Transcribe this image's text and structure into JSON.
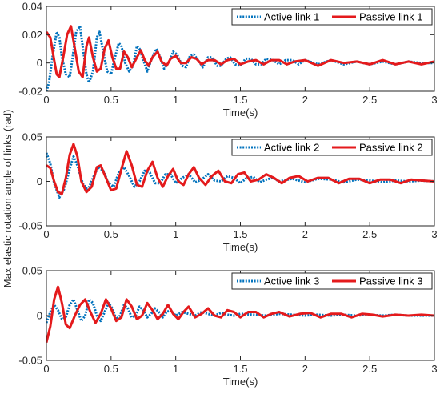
{
  "figure": {
    "ylabel": "Max elastic rotation angle of links (rad)",
    "colors": {
      "active": "#0072BD",
      "passive": "#E41A1C"
    }
  },
  "chart_data": [
    {
      "type": "line",
      "xlabel": "Time(s)",
      "xlim": [
        0,
        3
      ],
      "ylim": [
        -0.02,
        0.04
      ],
      "x_ticks": [
        0,
        0.5,
        1,
        1.5,
        2,
        2.5,
        3
      ],
      "x_tick_labels": [
        "0",
        "0.5",
        "1",
        "1.5",
        "2",
        "2.5",
        "3"
      ],
      "y_ticks": [
        -0.02,
        0,
        0.02,
        0.04
      ],
      "y_tick_labels": [
        "-0.02",
        "0",
        "0.02",
        "0.04"
      ],
      "legend": "top-right",
      "grid": false,
      "series": [
        {
          "name": "Active link 1",
          "style": "dotted",
          "color": "#0072BD",
          "x": [
            0,
            0.02,
            0.05,
            0.08,
            0.1,
            0.12,
            0.15,
            0.18,
            0.2,
            0.23,
            0.26,
            0.28,
            0.31,
            0.33,
            0.36,
            0.39,
            0.41,
            0.44,
            0.47,
            0.5,
            0.53,
            0.56,
            0.58,
            0.61,
            0.64,
            0.67,
            0.7,
            0.72,
            0.75,
            0.78,
            0.81,
            0.85,
            0.88,
            0.91,
            0.95,
            0.98,
            1.01,
            1.05,
            1.08,
            1.11,
            1.14,
            1.18,
            1.21,
            1.25,
            1.28,
            1.32,
            1.35,
            1.39,
            1.42,
            1.46,
            1.5,
            1.54,
            1.58,
            1.62,
            1.66,
            1.7,
            1.75,
            1.8,
            1.85,
            1.9,
            1.95,
            2.0,
            2.1,
            2.2,
            2.3,
            2.4,
            2.5,
            2.6,
            2.7,
            2.8,
            2.9,
            3.0
          ],
          "y": [
            -0.02,
            -0.014,
            0.006,
            0.022,
            0.018,
            0.004,
            -0.008,
            -0.01,
            0.002,
            0.022,
            0.026,
            0.012,
            -0.008,
            -0.014,
            -0.006,
            0.018,
            0.022,
            0.008,
            -0.006,
            -0.008,
            0.004,
            0.014,
            0.012,
            0,
            -0.006,
            -0.002,
            0.012,
            0.01,
            0.002,
            -0.006,
            0.002,
            0.01,
            0.004,
            -0.004,
            0.001,
            0.008,
            0.006,
            -0.002,
            -0.003,
            0.005,
            0.006,
            0.001,
            -0.003,
            0.004,
            0.004,
            -0.002,
            -0.002,
            0.003,
            0.004,
            -0.001,
            -0.002,
            0.003,
            0.003,
            -0.001,
            -0.001,
            0.003,
            0.002,
            -0.001,
            0.002,
            0.002,
            -0.001,
            0.002,
            -0.001,
            0.002,
            -0.001,
            0.001,
            -0.001,
            0.001,
            -0.001,
            0.001,
            0,
            0
          ]
        },
        {
          "name": "Passive link 1",
          "style": "solid",
          "color": "#E41A1C",
          "x": [
            0,
            0.03,
            0.06,
            0.08,
            0.1,
            0.13,
            0.16,
            0.19,
            0.22,
            0.25,
            0.28,
            0.31,
            0.33,
            0.36,
            0.39,
            0.42,
            0.45,
            0.48,
            0.51,
            0.54,
            0.57,
            0.6,
            0.63,
            0.66,
            0.7,
            0.73,
            0.76,
            0.79,
            0.82,
            0.86,
            0.89,
            0.93,
            0.96,
            1.0,
            1.04,
            1.08,
            1.12,
            1.16,
            1.2,
            1.25,
            1.3,
            1.35,
            1.4,
            1.45,
            1.5,
            1.56,
            1.62,
            1.68,
            1.74,
            1.8,
            1.86,
            1.92,
            2.0,
            2.1,
            2.2,
            2.3,
            2.4,
            2.5,
            2.6,
            2.7,
            2.8,
            2.9,
            3.0
          ],
          "y": [
            0.022,
            0.018,
            0.002,
            -0.008,
            -0.01,
            0.004,
            0.02,
            0.026,
            0.01,
            -0.006,
            -0.01,
            0.012,
            0.018,
            0.004,
            -0.006,
            -0.004,
            0.01,
            0.016,
            0.004,
            -0.004,
            -0.004,
            0.008,
            0.004,
            -0.003,
            0.004,
            0.009,
            0.002,
            -0.002,
            0.004,
            0.008,
            0.001,
            -0.002,
            0.003,
            0.005,
            0,
            0,
            0.004,
            0.003,
            -0.001,
            0.002,
            0.002,
            -0.001,
            0.002,
            0.003,
            -0.001,
            0.001,
            0.002,
            -0.001,
            0.002,
            0.002,
            -0.001,
            0.001,
            0.002,
            -0.002,
            0.002,
            0,
            0.001,
            -0.001,
            0.002,
            -0.001,
            0.001,
            -0.001,
            0.001
          ]
        }
      ]
    },
    {
      "type": "line",
      "xlabel": "Time(s)",
      "xlim": [
        0,
        3
      ],
      "ylim": [
        -0.05,
        0.05
      ],
      "x_ticks": [
        0,
        0.5,
        1,
        1.5,
        2,
        2.5,
        3
      ],
      "x_tick_labels": [
        "0",
        "0.5",
        "1",
        "1.5",
        "2",
        "2.5",
        "3"
      ],
      "y_ticks": [
        -0.05,
        0,
        0.05
      ],
      "y_tick_labels": [
        "-0.05",
        "0",
        "0.05"
      ],
      "legend": "top-right",
      "grid": false,
      "series": [
        {
          "name": "Active link 2",
          "style": "dotted",
          "color": "#0072BD",
          "x": [
            0,
            0.03,
            0.06,
            0.1,
            0.14,
            0.18,
            0.21,
            0.24,
            0.28,
            0.32,
            0.36,
            0.4,
            0.44,
            0.48,
            0.52,
            0.56,
            0.6,
            0.64,
            0.68,
            0.72,
            0.76,
            0.8,
            0.84,
            0.88,
            0.92,
            0.96,
            1.0,
            1.05,
            1.1,
            1.15,
            1.2,
            1.25,
            1.3,
            1.35,
            1.4,
            1.45,
            1.5,
            1.55,
            1.6,
            1.65,
            1.7,
            1.75,
            1.8,
            1.9,
            2.0,
            2.1,
            2.2,
            2.3,
            2.4,
            2.5,
            2.6,
            2.7,
            2.8,
            2.9,
            3.0
          ],
          "y": [
            0.032,
            0.02,
            -0.002,
            -0.018,
            -0.008,
            0.014,
            0.028,
            0.018,
            -0.002,
            -0.01,
            0.004,
            0.016,
            0.012,
            -0.002,
            -0.006,
            0.01,
            0.016,
            0.006,
            -0.006,
            0,
            0.012,
            0.01,
            -0.002,
            -0.002,
            0.008,
            0.008,
            -0.002,
            0.004,
            0.008,
            -0.001,
            0.002,
            0.008,
            0.001,
            0,
            0.006,
            0.004,
            -0.002,
            0.004,
            0.005,
            -0.001,
            0.002,
            0.004,
            0,
            0.003,
            -0.001,
            0.003,
            0.002,
            -0.001,
            0.002,
            0.001,
            -0.001,
            0.001,
            0,
            0.001,
            0
          ]
        },
        {
          "name": "Passive link 2",
          "style": "solid",
          "color": "#E41A1C",
          "x": [
            0,
            0.03,
            0.06,
            0.09,
            0.12,
            0.15,
            0.18,
            0.21,
            0.24,
            0.27,
            0.31,
            0.35,
            0.39,
            0.42,
            0.46,
            0.5,
            0.54,
            0.58,
            0.62,
            0.66,
            0.7,
            0.74,
            0.78,
            0.82,
            0.86,
            0.9,
            0.94,
            0.98,
            1.02,
            1.06,
            1.1,
            1.14,
            1.18,
            1.23,
            1.28,
            1.33,
            1.38,
            1.43,
            1.48,
            1.53,
            1.58,
            1.64,
            1.7,
            1.76,
            1.82,
            1.88,
            1.95,
            2.02,
            2.1,
            2.18,
            2.26,
            2.34,
            2.42,
            2.5,
            2.58,
            2.66,
            2.74,
            2.82,
            2.9,
            3.0
          ],
          "y": [
            0.018,
            0.015,
            0,
            -0.012,
            -0.014,
            0.004,
            0.03,
            0.042,
            0.028,
            0,
            -0.012,
            -0.006,
            0.016,
            0.018,
            0.004,
            -0.01,
            -0.008,
            0.014,
            0.034,
            0.018,
            -0.004,
            -0.006,
            0.012,
            0.022,
            0.004,
            -0.006,
            0.006,
            0.014,
            0,
            -0.004,
            0.008,
            0.016,
            0.004,
            -0.004,
            0.006,
            0.012,
            0,
            -0.002,
            0.008,
            0.01,
            0,
            0.002,
            0.008,
            0.004,
            -0.002,
            0.004,
            0.006,
            0,
            0.004,
            0.004,
            -0.002,
            0.003,
            0.003,
            -0.002,
            0.002,
            0.002,
            -0.002,
            0.002,
            0.001,
            0
          ]
        }
      ]
    },
    {
      "type": "line",
      "xlabel": "Time(s)",
      "xlim": [
        0,
        3
      ],
      "ylim": [
        -0.05,
        0.05
      ],
      "x_ticks": [
        0,
        0.5,
        1,
        1.5,
        2,
        2.5,
        3
      ],
      "x_tick_labels": [
        "0",
        "0.5",
        "1",
        "1.5",
        "2",
        "2.5",
        "3"
      ],
      "y_ticks": [
        -0.05,
        0,
        0.05
      ],
      "y_tick_labels": [
        "-0.05",
        "0",
        "0.05"
      ],
      "legend": "top-right",
      "grid": false,
      "series": [
        {
          "name": "Active link 3",
          "style": "dotted",
          "color": "#0072BD",
          "x": [
            0,
            0.03,
            0.06,
            0.09,
            0.12,
            0.15,
            0.18,
            0.21,
            0.24,
            0.27,
            0.3,
            0.33,
            0.36,
            0.39,
            0.42,
            0.45,
            0.48,
            0.51,
            0.54,
            0.57,
            0.6,
            0.63,
            0.66,
            0.69,
            0.72,
            0.75,
            0.78,
            0.81,
            0.84,
            0.87,
            0.9,
            0.93,
            0.96,
            1.0,
            1.05,
            1.1,
            1.15,
            1.2,
            1.25,
            1.3,
            1.35,
            1.4,
            1.45,
            1.5,
            1.6,
            1.7,
            1.8,
            1.9,
            2.0,
            2.1,
            2.2,
            2.3,
            2.4,
            2.5,
            2.6,
            2.7,
            2.8,
            2.9,
            3.0
          ],
          "y": [
            -0.008,
            0.004,
            0.012,
            0.006,
            -0.004,
            -0.002,
            0.012,
            0.018,
            0.006,
            -0.006,
            0,
            0.018,
            0.014,
            0,
            -0.006,
            0.004,
            0.014,
            0.008,
            -0.004,
            0,
            0.012,
            0.008,
            -0.002,
            0,
            0.01,
            0.006,
            -0.002,
            0.002,
            0.008,
            0.004,
            -0.002,
            0.004,
            0.006,
            0,
            0.004,
            0.002,
            0,
            0.004,
            0.002,
            0,
            0.003,
            0.001,
            0,
            0.002,
            0.001,
            0,
            0.002,
            0.001,
            0,
            0.001,
            0,
            0.001,
            0,
            0.001,
            0,
            0.001,
            0,
            0,
            0
          ]
        },
        {
          "name": "Passive link 3",
          "style": "solid",
          "color": "#E41A1C",
          "x": [
            0,
            0.03,
            0.06,
            0.09,
            0.12,
            0.15,
            0.18,
            0.22,
            0.26,
            0.3,
            0.34,
            0.38,
            0.42,
            0.46,
            0.5,
            0.54,
            0.58,
            0.62,
            0.66,
            0.7,
            0.74,
            0.78,
            0.82,
            0.86,
            0.9,
            0.94,
            0.98,
            1.02,
            1.06,
            1.1,
            1.15,
            1.2,
            1.25,
            1.3,
            1.35,
            1.4,
            1.45,
            1.5,
            1.56,
            1.62,
            1.68,
            1.74,
            1.8,
            1.88,
            1.96,
            2.04,
            2.12,
            2.2,
            2.28,
            2.36,
            2.44,
            2.52,
            2.6,
            2.7,
            2.8,
            2.9,
            3.0
          ],
          "y": [
            -0.03,
            -0.012,
            0.018,
            0.032,
            0.014,
            -0.01,
            -0.014,
            0,
            0.012,
            0.018,
            0.004,
            -0.008,
            0.002,
            0.018,
            0.008,
            -0.006,
            -0.002,
            0.018,
            0.01,
            -0.004,
            0,
            0.014,
            0.006,
            -0.004,
            0.002,
            0.012,
            0.002,
            -0.004,
            0.004,
            0.01,
            -0.002,
            0.002,
            0.008,
            0,
            -0.002,
            0.006,
            0.004,
            -0.002,
            0.004,
            0.004,
            -0.002,
            0.002,
            0.004,
            -0.001,
            0.002,
            0.003,
            -0.002,
            0.002,
            0.002,
            -0.002,
            0.002,
            0.001,
            -0.001,
            0.001,
            0,
            0.001,
            0
          ]
        }
      ]
    }
  ]
}
